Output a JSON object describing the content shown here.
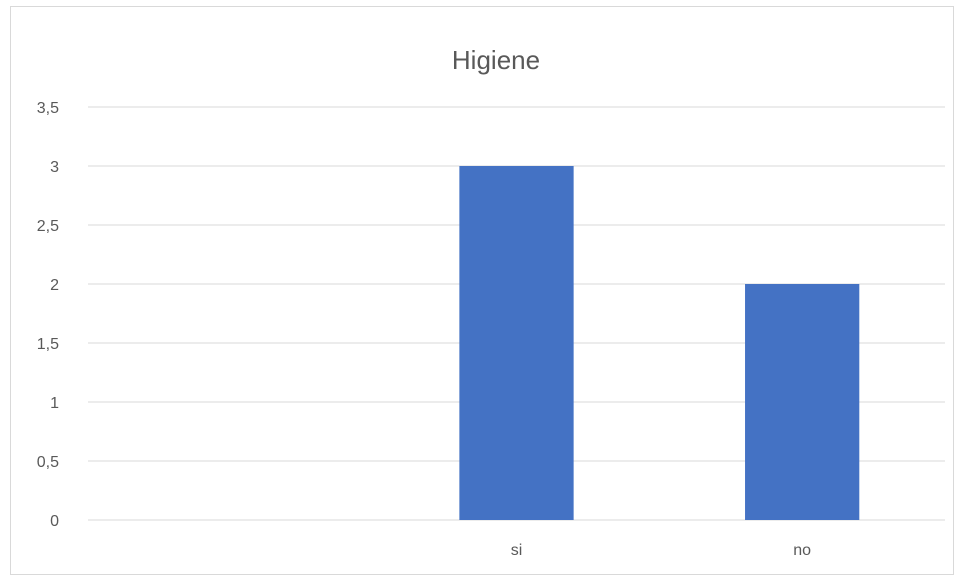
{
  "chart_data": {
    "type": "bar",
    "title": "Higiene",
    "categories": [
      "",
      "si",
      "no"
    ],
    "series": [
      {
        "values": [
          0,
          3,
          2
        ],
        "color": "#4472c4"
      }
    ],
    "ylim": [
      0,
      3.5
    ],
    "yticks": [
      "0",
      "0,5",
      "1",
      "1,5",
      "2",
      "2,5",
      "3",
      "3,5"
    ],
    "grid": true,
    "xlabel": "",
    "ylabel": ""
  }
}
